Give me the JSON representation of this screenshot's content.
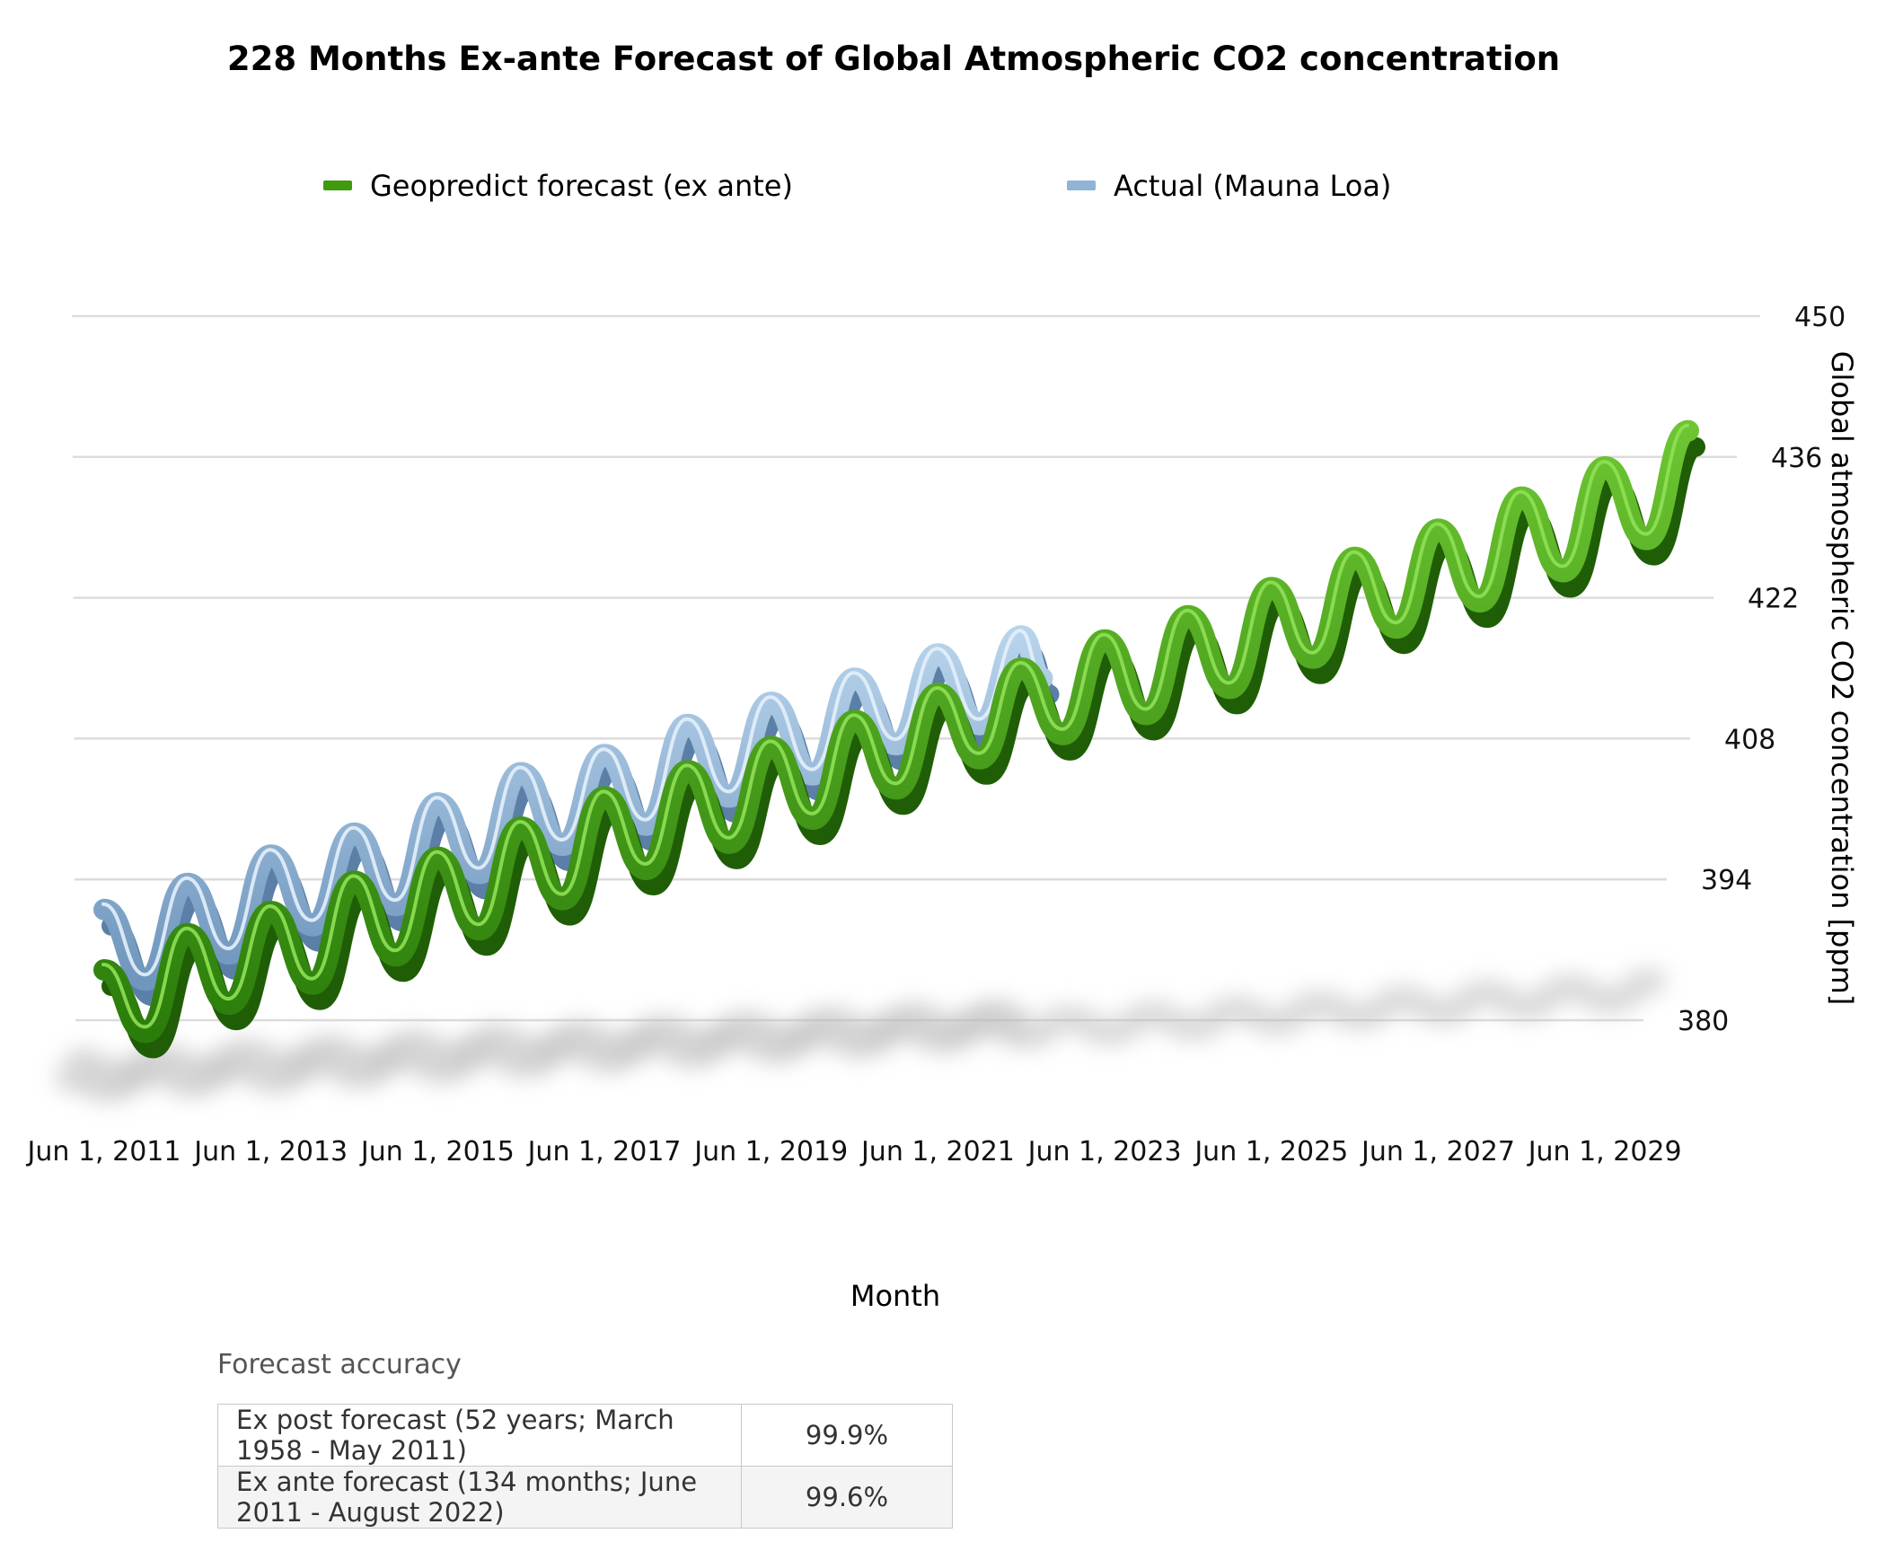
{
  "chart_data": {
    "type": "line",
    "title": "228 Months Ex-ante Forecast of Global Atmospheric CO2 concentration",
    "xlabel": "Month",
    "ylabel": "Global atmospheric CO2 concentration [ppm]",
    "ylim": [
      380,
      450
    ],
    "yticks": [
      380,
      394,
      408,
      422,
      436,
      450
    ],
    "x_tick_labels": [
      "Jun 1, 2011",
      "Jun 1, 2013",
      "Jun 1, 2015",
      "Jun 1, 2017",
      "Jun 1, 2019",
      "Jun 1, 2021",
      "Jun 1, 2023",
      "Jun 1, 2025",
      "Jun 1, 2027",
      "Jun 1, 2029"
    ],
    "x_tick_years": [
      2011.42,
      2013.42,
      2015.42,
      2017.42,
      2019.42,
      2021.42,
      2023.42,
      2025.42,
      2027.42,
      2029.42
    ],
    "grid": true,
    "legend_position": "top",
    "series": [
      {
        "name": "Geopredict forecast (ex ante)",
        "color": "#3f9a10",
        "start": "Jun 2011",
        "end": "May 2030",
        "points": [
          [
            2011.42,
            385.0
          ],
          [
            2011.92,
            378.8
          ],
          [
            2012.42,
            388.6
          ],
          [
            2012.92,
            381.6
          ],
          [
            2013.42,
            390.8
          ],
          [
            2013.92,
            383.6
          ],
          [
            2014.42,
            393.8
          ],
          [
            2014.92,
            386.4
          ],
          [
            2015.42,
            396.2
          ],
          [
            2015.92,
            389.0
          ],
          [
            2016.42,
            399.2
          ],
          [
            2016.92,
            392.0
          ],
          [
            2017.42,
            402.2
          ],
          [
            2017.92,
            395.0
          ],
          [
            2018.42,
            404.8
          ],
          [
            2018.92,
            397.6
          ],
          [
            2019.42,
            407.2
          ],
          [
            2019.92,
            400.0
          ],
          [
            2020.42,
            409.8
          ],
          [
            2020.92,
            403.0
          ],
          [
            2021.42,
            412.5
          ],
          [
            2021.92,
            406.0
          ],
          [
            2022.42,
            415.0
          ],
          [
            2022.92,
            408.4
          ],
          [
            2023.42,
            417.8
          ],
          [
            2023.92,
            410.4
          ],
          [
            2024.42,
            420.2
          ],
          [
            2024.92,
            413.0
          ],
          [
            2025.42,
            423.0
          ],
          [
            2025.92,
            416.0
          ],
          [
            2026.42,
            426.0
          ],
          [
            2026.92,
            419.0
          ],
          [
            2027.42,
            428.8
          ],
          [
            2027.92,
            421.6
          ],
          [
            2028.42,
            432.0
          ],
          [
            2028.92,
            424.6
          ],
          [
            2029.42,
            435.0
          ],
          [
            2029.92,
            427.8
          ],
          [
            2030.42,
            438.6
          ]
        ]
      },
      {
        "name": "Actual (Mauna Loa)",
        "color": "#8fb4d6",
        "start": "Jun 2011",
        "end": "Aug 2022",
        "points": [
          [
            2011.42,
            391.0
          ],
          [
            2011.92,
            384.0
          ],
          [
            2012.42,
            393.6
          ],
          [
            2012.92,
            386.6
          ],
          [
            2013.42,
            396.4
          ],
          [
            2013.92,
            389.4
          ],
          [
            2014.42,
            398.6
          ],
          [
            2014.92,
            391.4
          ],
          [
            2015.42,
            401.6
          ],
          [
            2015.92,
            394.6
          ],
          [
            2016.42,
            404.6
          ],
          [
            2016.92,
            397.4
          ],
          [
            2017.42,
            406.4
          ],
          [
            2017.92,
            399.4
          ],
          [
            2018.42,
            409.4
          ],
          [
            2018.92,
            402.2
          ],
          [
            2019.42,
            411.6
          ],
          [
            2019.92,
            404.4
          ],
          [
            2020.42,
            414.0
          ],
          [
            2020.92,
            407.4
          ],
          [
            2021.42,
            416.4
          ],
          [
            2021.92,
            409.4
          ],
          [
            2022.42,
            418.2
          ],
          [
            2022.67,
            414.0
          ]
        ]
      }
    ]
  },
  "legend": {
    "items": [
      {
        "label": "Geopredict forecast (ex ante)",
        "color": "#3f9a10"
      },
      {
        "label": "Actual (Mauna Loa)",
        "color": "#8fb4d6"
      }
    ]
  },
  "accuracy": {
    "title": "Forecast accuracy",
    "rows": [
      {
        "metric": "Ex post forecast (52 years; March 1958 - May 2011)",
        "value": "99.9%"
      },
      {
        "metric": "Ex ante forecast (134 months; June 2011 - August 2022)",
        "value": "99.6%"
      }
    ]
  }
}
